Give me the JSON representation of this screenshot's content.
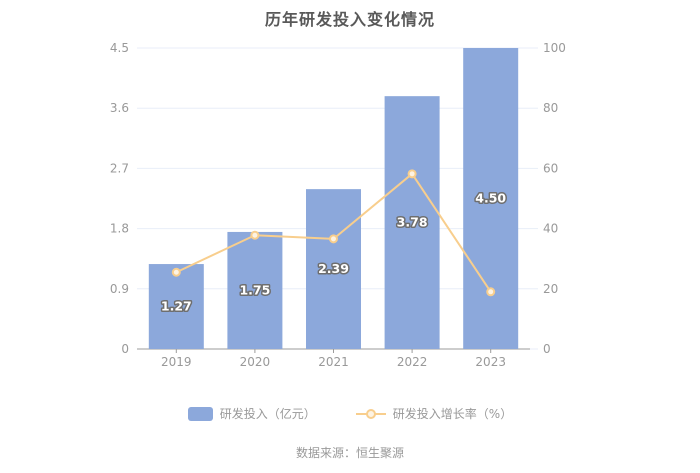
{
  "title": "历年研发投入变化情况",
  "source": "数据来源：恒生聚源",
  "legend": {
    "bar_label": "研发投入（亿元）",
    "line_label": "研发投入增长率（%）"
  },
  "colors": {
    "bar": "#8CA8DB",
    "line": "#F8CE8D",
    "marker_fill": "#FDF3E3",
    "grid": "#E8EEF8",
    "axis_line": "#9B9B9B",
    "tick_text": "#999999",
    "title_text": "#595959",
    "legend_text": "#999999",
    "source_text": "#999999",
    "bar_label_fill": "#FFFFFF",
    "bar_label_outline": "#6E6E6E"
  },
  "chart_data": {
    "type": "bar",
    "title": "历年研发投入变化情况",
    "categories": [
      "2019",
      "2020",
      "2021",
      "2022",
      "2023"
    ],
    "series": [
      {
        "name": "研发投入（亿元）",
        "type": "bar",
        "axis": "left",
        "values": [
          1.27,
          1.75,
          2.39,
          3.78,
          4.5
        ],
        "labels": [
          "1.27",
          "1.75",
          "2.39",
          "3.78",
          "4.50"
        ]
      },
      {
        "name": "研发投入增长率（%）",
        "type": "line",
        "axis": "right",
        "values": [
          25.5,
          37.8,
          36.6,
          58.2,
          19.0
        ]
      }
    ],
    "left_axis": {
      "min": 0,
      "max": 4.5,
      "ticks": [
        0,
        0.9,
        1.8,
        2.7,
        3.6,
        4.5
      ],
      "tick_labels": [
        "0",
        "0.9",
        "1.8",
        "2.7",
        "3.6",
        "4.5"
      ]
    },
    "right_axis": {
      "min": 0,
      "max": 100,
      "ticks": [
        0,
        20,
        40,
        60,
        80,
        100
      ],
      "tick_labels": [
        "0",
        "20",
        "40",
        "60",
        "80",
        "100"
      ]
    },
    "legend_position": "bottom",
    "grid": true
  }
}
